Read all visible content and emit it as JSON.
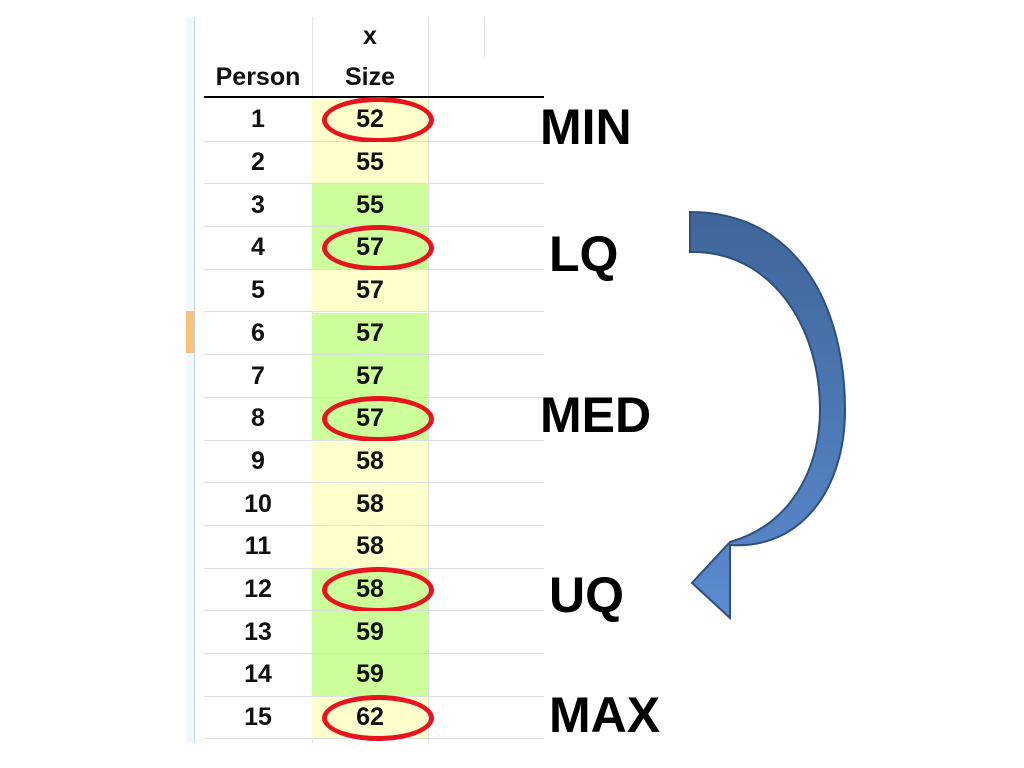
{
  "table": {
    "column_header_top": "x",
    "columns": [
      "Person",
      "Size"
    ],
    "rows": [
      {
        "person": "1",
        "size": "52",
        "fill": "yellow",
        "circled": true
      },
      {
        "person": "2",
        "size": "55",
        "fill": "yellow",
        "circled": false
      },
      {
        "person": "3",
        "size": "55",
        "fill": "green",
        "circled": false
      },
      {
        "person": "4",
        "size": "57",
        "fill": "green",
        "circled": true
      },
      {
        "person": "5",
        "size": "57",
        "fill": "yellow",
        "circled": false
      },
      {
        "person": "6",
        "size": "57",
        "fill": "green",
        "circled": false
      },
      {
        "person": "7",
        "size": "57",
        "fill": "green",
        "circled": false
      },
      {
        "person": "8",
        "size": "57",
        "fill": "green",
        "circled": true
      },
      {
        "person": "9",
        "size": "58",
        "fill": "yellow",
        "circled": false
      },
      {
        "person": "10",
        "size": "58",
        "fill": "yellow",
        "circled": false
      },
      {
        "person": "11",
        "size": "58",
        "fill": "yellow",
        "circled": false
      },
      {
        "person": "12",
        "size": "58",
        "fill": "green",
        "circled": true
      },
      {
        "person": "13",
        "size": "59",
        "fill": "green",
        "circled": false
      },
      {
        "person": "14",
        "size": "59",
        "fill": "green",
        "circled": false
      },
      {
        "person": "15",
        "size": "62",
        "fill": "yellow",
        "circled": true
      }
    ]
  },
  "labels": {
    "min": "MIN",
    "lq": "LQ",
    "med": "MED",
    "uq": "UQ",
    "max": "MAX"
  },
  "colors": {
    "yellow_fill": "#ffffcc",
    "green_fill": "#ccff99",
    "circle": "#e8131c",
    "arrow_fill": "#4f7fc0",
    "arrow_dark": "#3a5f93"
  },
  "arrow_icon": "curved-arrow-icon"
}
